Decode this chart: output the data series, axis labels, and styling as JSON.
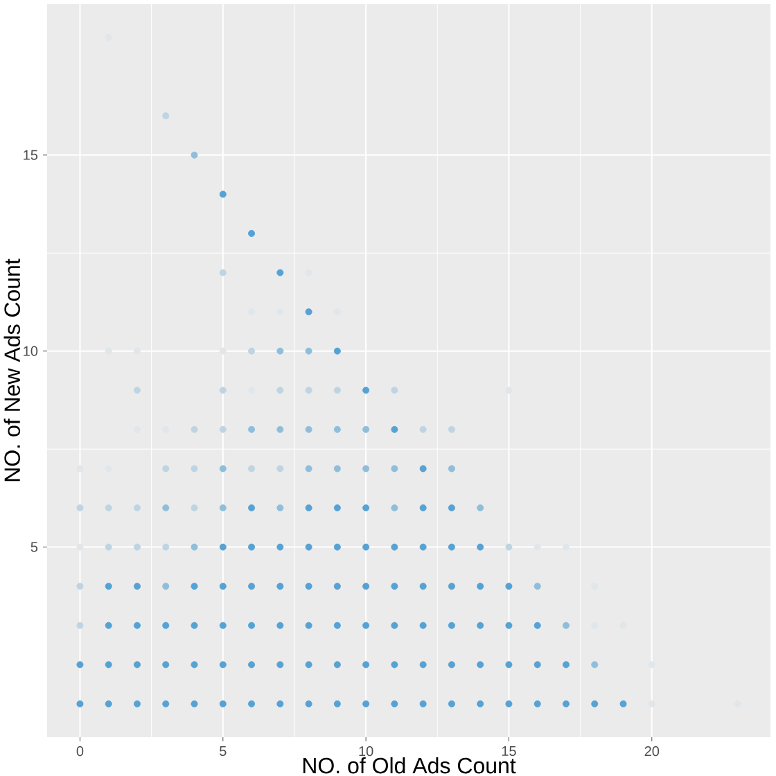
{
  "chart_data": {
    "type": "scatter",
    "xlabel": "NO. of Old Ads Count",
    "ylabel": "NO. of New Ads Count",
    "xlim": [
      -1.15,
      24.15
    ],
    "ylim": [
      0.15,
      18.85
    ],
    "xticks": [
      0,
      5,
      10,
      15,
      20
    ],
    "yticks": [
      5,
      10,
      15
    ],
    "grid": true,
    "marker": "circle",
    "series": [
      {
        "color": "#e0e6ea",
        "x": [
          20,
          23,
          20,
          18,
          19,
          18,
          0,
          16,
          17,
          0,
          1,
          2,
          3,
          6,
          15,
          1,
          2,
          5,
          6,
          7,
          9,
          8,
          1
        ],
        "values": [
          1,
          1,
          2,
          3,
          3,
          4,
          5,
          5,
          5,
          7,
          7,
          8,
          8,
          9,
          9,
          10,
          10,
          10,
          11,
          11,
          11,
          12,
          18
        ]
      },
      {
        "color": "#bfd4e2",
        "x": [
          0,
          0,
          1,
          2,
          3,
          15,
          0,
          1,
          2,
          4,
          3,
          4,
          6,
          7,
          4,
          5,
          12,
          13,
          2,
          5,
          7,
          8,
          9,
          11,
          6,
          5,
          3
        ],
        "values": [
          3,
          4,
          5,
          5,
          5,
          5,
          6,
          6,
          6,
          6,
          7,
          7,
          7,
          7,
          8,
          8,
          8,
          8,
          9,
          9,
          9,
          9,
          9,
          9,
          10,
          12,
          16
        ]
      },
      {
        "color": "#8fbedb",
        "x": [
          18,
          17,
          3,
          16,
          4,
          3,
          5,
          7,
          11,
          14,
          5,
          8,
          9,
          10,
          11,
          13,
          6,
          7,
          8,
          9,
          10,
          7,
          8,
          4
        ],
        "values": [
          2,
          3,
          4,
          4,
          5,
          6,
          6,
          6,
          6,
          6,
          7,
          7,
          7,
          7,
          7,
          7,
          8,
          8,
          8,
          8,
          8,
          10,
          10,
          15
        ]
      },
      {
        "color": "#56a2d4",
        "x": [
          0,
          1,
          2,
          3,
          4,
          5,
          6,
          7,
          8,
          9,
          10,
          11,
          12,
          13,
          14,
          15,
          16,
          17,
          18,
          19,
          0,
          1,
          2,
          3,
          4,
          5,
          6,
          7,
          8,
          9,
          10,
          11,
          12,
          13,
          14,
          15,
          16,
          17,
          1,
          2,
          3,
          4,
          5,
          6,
          7,
          8,
          9,
          10,
          11,
          12,
          13,
          14,
          15,
          16,
          1,
          2,
          4,
          5,
          6,
          7,
          8,
          9,
          10,
          11,
          12,
          13,
          14,
          15,
          5,
          6,
          7,
          8,
          9,
          10,
          11,
          12,
          13,
          14,
          6,
          8,
          9,
          10,
          12,
          13,
          12,
          11,
          10,
          9,
          8,
          7,
          6,
          5
        ],
        "values": [
          1,
          1,
          1,
          1,
          1,
          1,
          1,
          1,
          1,
          1,
          1,
          1,
          1,
          1,
          1,
          1,
          1,
          1,
          1,
          1,
          2,
          2,
          2,
          2,
          2,
          2,
          2,
          2,
          2,
          2,
          2,
          2,
          2,
          2,
          2,
          2,
          2,
          2,
          3,
          3,
          3,
          3,
          3,
          3,
          3,
          3,
          3,
          3,
          3,
          3,
          3,
          3,
          3,
          3,
          4,
          4,
          4,
          4,
          4,
          4,
          4,
          4,
          4,
          4,
          4,
          4,
          4,
          4,
          5,
          5,
          5,
          5,
          5,
          5,
          5,
          5,
          5,
          5,
          6,
          6,
          6,
          6,
          6,
          6,
          7,
          8,
          9,
          10,
          11,
          12,
          13,
          14
        ]
      }
    ]
  }
}
